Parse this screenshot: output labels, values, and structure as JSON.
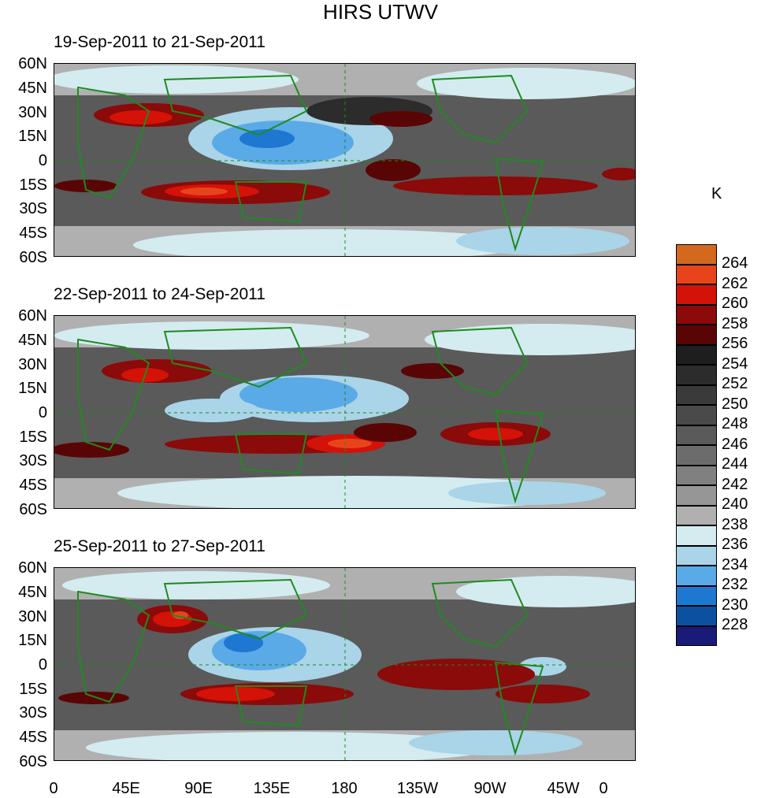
{
  "title": "HIRS UTWV",
  "panels": [
    {
      "label": "19-Sep-2011 to 21-Sep-2011",
      "variant": 1
    },
    {
      "label": "22-Sep-2011 to 24-Sep-2011",
      "variant": 2
    },
    {
      "label": "25-Sep-2011 to 27-Sep-2011",
      "variant": 3
    }
  ],
  "lat_labels": [
    "60N",
    "45N",
    "30N",
    "15N",
    "0",
    "15S",
    "30S",
    "45S",
    "60S"
  ],
  "lon_labels": [
    "0",
    "45E",
    "90E",
    "135E",
    "180",
    "135W",
    "90W",
    "45W",
    "0"
  ],
  "colorbar": {
    "unit": "K",
    "levels": [
      "264",
      "262",
      "260",
      "258",
      "256",
      "254",
      "252",
      "250",
      "248",
      "246",
      "244",
      "242",
      "240",
      "238",
      "236",
      "234",
      "232",
      "230",
      "228"
    ],
    "colors": [
      "#d2691e",
      "#e8441c",
      "#d41208",
      "#8b0a0a",
      "#5a0505",
      "#1e1e1e",
      "#2c2c2c",
      "#3a3a3a",
      "#4a4a4a",
      "#5a5a5a",
      "#6c6c6c",
      "#808080",
      "#969696",
      "#b0b0b0",
      "#d4ecf0",
      "#aad4e8",
      "#5aaae8",
      "#1e78d2",
      "#0c50a0",
      "#1a1a78"
    ]
  }
}
